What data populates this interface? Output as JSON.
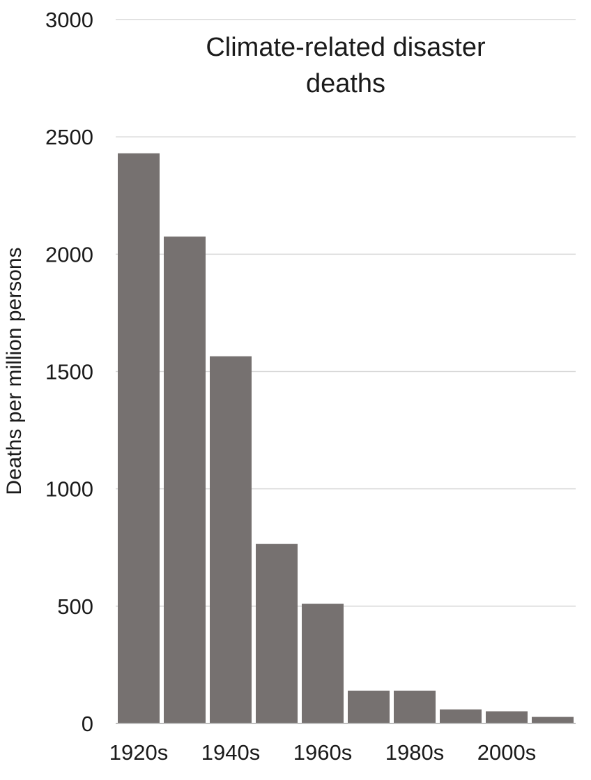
{
  "chart_data": {
    "type": "bar",
    "title_lines": [
      "Climate-related disaster",
      "deaths"
    ],
    "xlabel": "",
    "ylabel": "Deaths per million persons",
    "ylim": [
      0,
      3000
    ],
    "y_ticks": [
      "0",
      "500",
      "1000",
      "1500",
      "2000",
      "2500",
      "3000"
    ],
    "categories": [
      "1920s",
      "1930s",
      "1940s",
      "1950s",
      "1960s",
      "1970s",
      "1980s",
      "1990s",
      "2000s",
      "2010s"
    ],
    "x_tick_labels": [
      "1920s",
      "",
      "1940s",
      "",
      "1960s",
      "",
      "1980s",
      "",
      "2000s",
      ""
    ],
    "values": [
      2430,
      2075,
      1565,
      765,
      510,
      140,
      140,
      60,
      52,
      28
    ],
    "bar_color": "#767170",
    "grid": true,
    "grid_color": "#d9d9d9"
  }
}
